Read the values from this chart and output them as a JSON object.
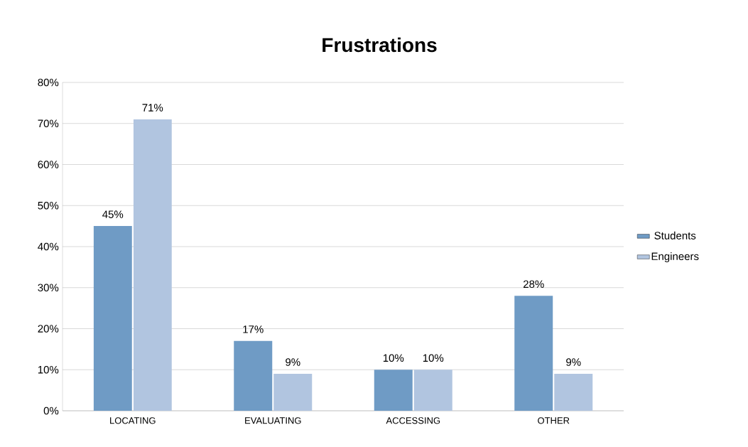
{
  "chart_data": {
    "type": "bar",
    "title": "Frustrations",
    "categories": [
      "LOCATING",
      "EVALUATING",
      "ACCESSING",
      "OTHER"
    ],
    "series": [
      {
        "name": "Students",
        "color": "#6f9bc5",
        "values": [
          45,
          17,
          10,
          28
        ],
        "value_labels": [
          "45%",
          "17%",
          "10%",
          "28%"
        ]
      },
      {
        "name": "Engineers",
        "color": "#b1c5e0",
        "values": [
          71,
          9,
          10,
          9
        ],
        "value_labels": [
          "71%",
          "9%",
          "10%",
          "9%"
        ]
      }
    ],
    "ylim": [
      0,
      80
    ],
    "yticks": [
      {
        "value": 0,
        "label": "0%"
      },
      {
        "value": 10,
        "label": "10%"
      },
      {
        "value": 20,
        "label": "20%"
      },
      {
        "value": 30,
        "label": "30%"
      },
      {
        "value": 40,
        "label": "40%"
      },
      {
        "value": 50,
        "label": "50%"
      },
      {
        "value": 60,
        "label": "60%"
      },
      {
        "value": 70,
        "label": "70%"
      },
      {
        "value": 80,
        "label": "80%"
      }
    ],
    "grid": "y",
    "legend": "right"
  }
}
